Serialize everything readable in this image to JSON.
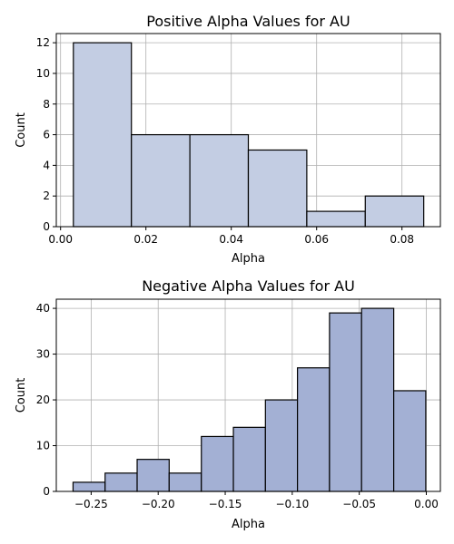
{
  "chart_data": [
    {
      "type": "bar",
      "subtype": "histogram",
      "title": "Positive Alpha Values for AU",
      "xlabel": "Alpha",
      "ylabel": "Count",
      "xlim": [
        -0.001,
        0.089
      ],
      "ylim": [
        0,
        12.6
      ],
      "grid": true,
      "bar_color": "#c3cde3",
      "edge_color": "#000000",
      "bins": [
        {
          "x0": 0.003,
          "x1": 0.0166,
          "count": 12
        },
        {
          "x0": 0.0166,
          "x1": 0.0303,
          "count": 6
        },
        {
          "x0": 0.0303,
          "x1": 0.044,
          "count": 6
        },
        {
          "x0": 0.044,
          "x1": 0.0577,
          "count": 5
        },
        {
          "x0": 0.0577,
          "x1": 0.0714,
          "count": 1
        },
        {
          "x0": 0.0714,
          "x1": 0.0851,
          "count": 2
        }
      ],
      "xticks": [
        {
          "value": 0.0,
          "label": "0.00"
        },
        {
          "value": 0.02,
          "label": "0.02"
        },
        {
          "value": 0.04,
          "label": "0.04"
        },
        {
          "value": 0.06,
          "label": "0.06"
        },
        {
          "value": 0.08,
          "label": "0.08"
        }
      ],
      "yticks": [
        {
          "value": 0,
          "label": "0"
        },
        {
          "value": 2,
          "label": "2"
        },
        {
          "value": 4,
          "label": "4"
        },
        {
          "value": 6,
          "label": "6"
        },
        {
          "value": 8,
          "label": "8"
        },
        {
          "value": 10,
          "label": "10"
        },
        {
          "value": 12,
          "label": "12"
        }
      ]
    },
    {
      "type": "bar",
      "subtype": "histogram",
      "title": "Negative Alpha Values for AU",
      "xlabel": "Alpha",
      "ylabel": "Count",
      "xlim": [
        -0.276,
        0.0105
      ],
      "ylim": [
        0,
        42
      ],
      "grid": true,
      "bar_color": "#a3b0d4",
      "edge_color": "#000000",
      "bins": [
        {
          "x0": -0.2635,
          "x1": -0.2396,
          "count": 2
        },
        {
          "x0": -0.2396,
          "x1": -0.2157,
          "count": 4
        },
        {
          "x0": -0.2157,
          "x1": -0.1918,
          "count": 7
        },
        {
          "x0": -0.1918,
          "x1": -0.1678,
          "count": 4
        },
        {
          "x0": -0.1678,
          "x1": -0.1439,
          "count": 12
        },
        {
          "x0": -0.1439,
          "x1": -0.12,
          "count": 14
        },
        {
          "x0": -0.12,
          "x1": -0.0961,
          "count": 20
        },
        {
          "x0": -0.0961,
          "x1": -0.0722,
          "count": 27
        },
        {
          "x0": -0.0722,
          "x1": -0.0483,
          "count": 39
        },
        {
          "x0": -0.0483,
          "x1": -0.0243,
          "count": 40
        },
        {
          "x0": -0.0243,
          "x1": -0.0004,
          "count": 22
        }
      ],
      "xticks": [
        {
          "value": -0.25,
          "label": "−0.25"
        },
        {
          "value": -0.2,
          "label": "−0.20"
        },
        {
          "value": -0.15,
          "label": "−0.15"
        },
        {
          "value": -0.1,
          "label": "−0.10"
        },
        {
          "value": -0.05,
          "label": "−0.05"
        },
        {
          "value": 0.0,
          "label": "0.00"
        }
      ],
      "yticks": [
        {
          "value": 0,
          "label": "0"
        },
        {
          "value": 10,
          "label": "10"
        },
        {
          "value": 20,
          "label": "20"
        },
        {
          "value": 30,
          "label": "30"
        },
        {
          "value": 40,
          "label": "40"
        }
      ]
    }
  ]
}
